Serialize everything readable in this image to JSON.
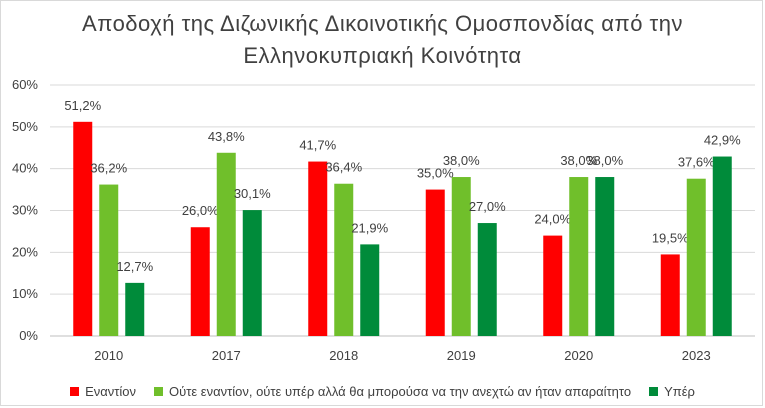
{
  "chart_data": {
    "type": "bar",
    "title_line1": "Αποδοχή της Διζωνικής Δικοινοτικής Ομοσπονδίας από την",
    "title_line2": "Ελληνοκυπριακή Κοινότητα",
    "categories": [
      "2010",
      "2017",
      "2018",
      "2019",
      "2020",
      "2023"
    ],
    "series": [
      {
        "name": "Εναντίον",
        "color": "#ff0000",
        "values": [
          51.2,
          26.0,
          41.7,
          35.0,
          24.0,
          19.5
        ],
        "labels": [
          "51,2%",
          "26,0%",
          "41,7%",
          "35,0%",
          "24,0%",
          "19,5%"
        ]
      },
      {
        "name": "Ούτε εναντίον, ούτε υπέρ αλλά θα μπορούσα να την ανεχτώ αν ήταν απαραίτητο",
        "color": "#70bf2b",
        "values": [
          36.2,
          43.8,
          36.4,
          38.0,
          38.0,
          37.6
        ],
        "labels": [
          "36,2%",
          "43,8%",
          "36,4%",
          "38,0%",
          "38,0%",
          "37,6%"
        ]
      },
      {
        "name": "Υπέρ",
        "color": "#008b3a",
        "values": [
          12.7,
          30.1,
          21.9,
          27.0,
          38.0,
          42.9
        ],
        "labels": [
          "12,7%",
          "30,1%",
          "21,9%",
          "27,0%",
          "38,0%",
          "42,9%"
        ]
      }
    ],
    "y_ticks": [
      "0%",
      "10%",
      "20%",
      "30%",
      "40%",
      "50%",
      "60%"
    ],
    "ylim": [
      0,
      60
    ],
    "grid": true,
    "legend_position": "bottom"
  }
}
